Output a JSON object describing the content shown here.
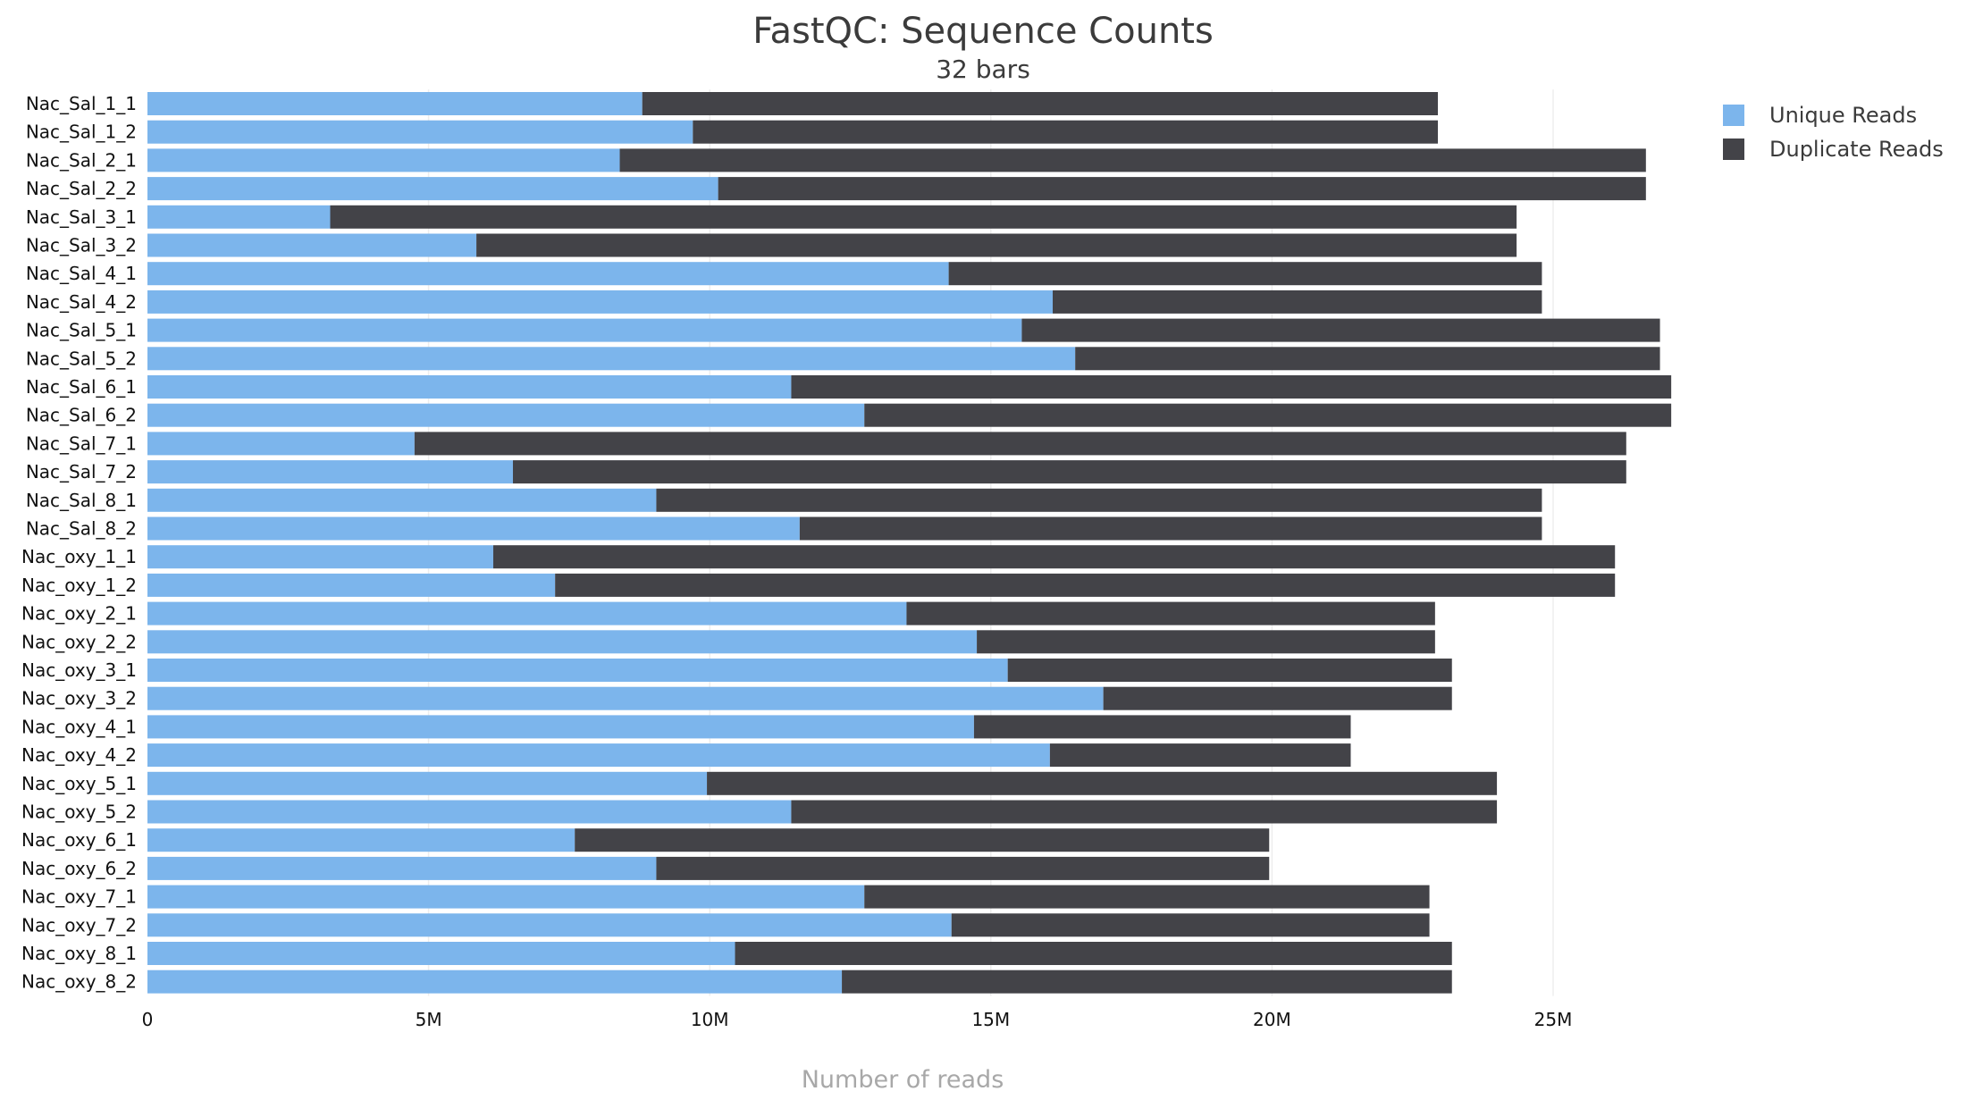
{
  "chart_data": {
    "type": "bar",
    "orientation": "horizontal",
    "stacked": true,
    "title": "FastQC: Sequence Counts",
    "subtitle": "32 bars",
    "xlabel": "Number of reads",
    "ylabel": "",
    "xlim": [
      0,
      30000000
    ],
    "x_ticks": [
      0,
      5000000,
      10000000,
      15000000,
      20000000,
      25000000
    ],
    "x_tick_labels": [
      "0",
      "5M",
      "10M",
      "15M",
      "20M",
      "25M"
    ],
    "grid": true,
    "legend_position": "top-right",
    "categories": [
      "Nac_Sal_1_1",
      "Nac_Sal_1_2",
      "Nac_Sal_2_1",
      "Nac_Sal_2_2",
      "Nac_Sal_3_1",
      "Nac_Sal_3_2",
      "Nac_Sal_4_1",
      "Nac_Sal_4_2",
      "Nac_Sal_5_1",
      "Nac_Sal_5_2",
      "Nac_Sal_6_1",
      "Nac_Sal_6_2",
      "Nac_Sal_7_1",
      "Nac_Sal_7_2",
      "Nac_Sal_8_1",
      "Nac_Sal_8_2",
      "Nac_oxy_1_1",
      "Nac_oxy_1_2",
      "Nac_oxy_2_1",
      "Nac_oxy_2_2",
      "Nac_oxy_3_1",
      "Nac_oxy_3_2",
      "Nac_oxy_4_1",
      "Nac_oxy_4_2",
      "Nac_oxy_5_1",
      "Nac_oxy_5_2",
      "Nac_oxy_6_1",
      "Nac_oxy_6_2",
      "Nac_oxy_7_1",
      "Nac_oxy_7_2",
      "Nac_oxy_8_1",
      "Nac_oxy_8_2"
    ],
    "series": [
      {
        "name": "Unique Reads",
        "color": "#7cb5ec",
        "values": [
          8800000,
          9700000,
          8400000,
          10150000,
          3250000,
          5850000,
          14250000,
          16100000,
          15550000,
          16500000,
          11450000,
          12750000,
          4750000,
          6500000,
          9050000,
          11600000,
          6150000,
          7250000,
          13500000,
          14750000,
          15300000,
          17000000,
          14700000,
          16050000,
          9950000,
          11450000,
          7600000,
          9050000,
          12750000,
          14300000,
          10450000,
          12350000
        ]
      },
      {
        "name": "Duplicate Reads",
        "color": "#434348",
        "values": [
          14150000,
          13250000,
          18250000,
          16500000,
          21100000,
          18500000,
          10550000,
          8700000,
          11350000,
          10400000,
          15650000,
          14350000,
          21550000,
          19800000,
          15750000,
          13200000,
          19950000,
          18850000,
          9400000,
          8150000,
          7900000,
          6200000,
          6700000,
          5350000,
          14050000,
          12550000,
          12350000,
          10900000,
          10050000,
          8500000,
          12750000,
          10850000
        ]
      }
    ]
  }
}
